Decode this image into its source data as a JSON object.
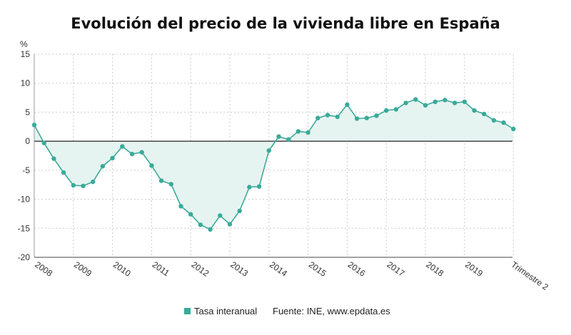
{
  "chart_data": {
    "type": "line",
    "title": "Evolución del precio de la vivienda libre en España",
    "ylabel": "%",
    "ylim": [
      -20,
      15
    ],
    "yticks": [
      15,
      10,
      5,
      0,
      -5,
      -10,
      -15,
      -20
    ],
    "grid": true,
    "x_start_year": 2008,
    "x_tick_labels": [
      "2008",
      "2009",
      "2010",
      "2011",
      "2012",
      "2013",
      "2014",
      "2015",
      "2016",
      "2017",
      "2018",
      "2019"
    ],
    "x_end_label": "Trimestre 2",
    "series": [
      {
        "name": "Tasa interanual",
        "color": "#3aaa99",
        "fill": "#e6f4f1",
        "x": [
          "2008 T1",
          "2008 T2",
          "2008 T3",
          "2008 T4",
          "2009 T1",
          "2009 T2",
          "2009 T3",
          "2009 T4",
          "2010 T1",
          "2010 T2",
          "2010 T3",
          "2010 T4",
          "2011 T1",
          "2011 T2",
          "2011 T3",
          "2011 T4",
          "2012 T1",
          "2012 T2",
          "2012 T3",
          "2012 T4",
          "2013 T1",
          "2013 T2",
          "2013 T3",
          "2013 T4",
          "2014 T1",
          "2014 T2",
          "2014 T3",
          "2014 T4",
          "2015 T1",
          "2015 T2",
          "2015 T3",
          "2015 T4",
          "2016 T1",
          "2016 T2",
          "2016 T3",
          "2016 T4",
          "2017 T1",
          "2017 T2",
          "2017 T3",
          "2017 T4",
          "2018 T1",
          "2018 T2",
          "2018 T3",
          "2018 T4",
          "2019 T1",
          "2019 T2",
          "2019 T3",
          "2019 T4",
          "2020 T1",
          "2020 T2"
        ],
        "values": [
          2.8,
          -0.3,
          -3.0,
          -5.4,
          -7.6,
          -7.7,
          -7.0,
          -4.3,
          -2.9,
          -0.9,
          -2.2,
          -1.9,
          -4.2,
          -6.8,
          -7.4,
          -11.2,
          -12.6,
          -14.4,
          -15.2,
          -12.8,
          -14.3,
          -12.0,
          -7.9,
          -7.8,
          -1.6,
          0.8,
          0.3,
          1.7,
          1.5,
          4.0,
          4.5,
          4.2,
          6.3,
          3.9,
          4.0,
          4.4,
          5.3,
          5.5,
          6.6,
          7.2,
          6.2,
          6.8,
          7.1,
          6.6,
          6.8,
          5.3,
          4.7,
          3.6,
          3.2,
          2.1
        ]
      }
    ],
    "legend_position": "bottom",
    "legend_label": "Tasa interanual",
    "source_label": "Fuente: INE, www.epdata.es"
  }
}
